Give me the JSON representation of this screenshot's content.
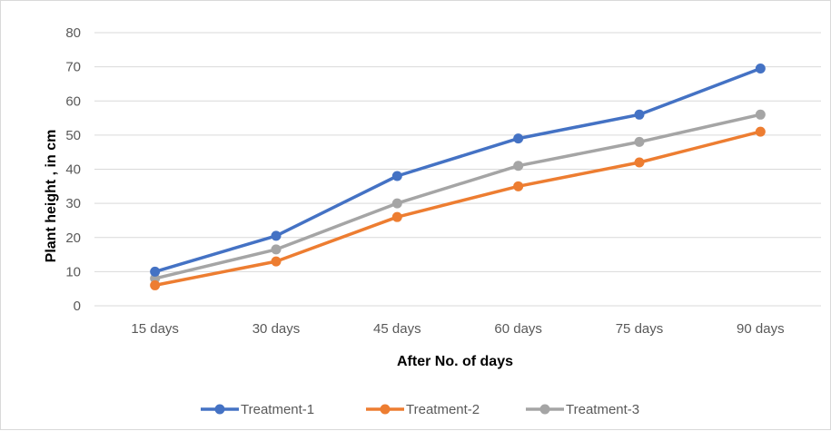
{
  "chart_data": {
    "type": "line",
    "title": "",
    "xlabel": "After No. of days",
    "ylabel": "Plant height , in cm",
    "categories": [
      "15 days",
      "30 days",
      "45 days",
      "60 days",
      "75 days",
      "90 days"
    ],
    "ylim": [
      0,
      80
    ],
    "yticks": [
      0,
      10,
      20,
      30,
      40,
      50,
      60,
      70,
      80
    ],
    "grid": true,
    "legend_position": "bottom",
    "series": [
      {
        "name": "Treatment-1",
        "color": "#4472C4",
        "values": [
          10,
          20.5,
          38,
          49,
          56,
          69.5
        ]
      },
      {
        "name": "Treatment-2",
        "color": "#ED7D31",
        "values": [
          6,
          13,
          26,
          35,
          42,
          51
        ]
      },
      {
        "name": "Treatment-3",
        "color": "#A5A5A5",
        "values": [
          8,
          16.5,
          30,
          41,
          48,
          56
        ]
      }
    ]
  }
}
